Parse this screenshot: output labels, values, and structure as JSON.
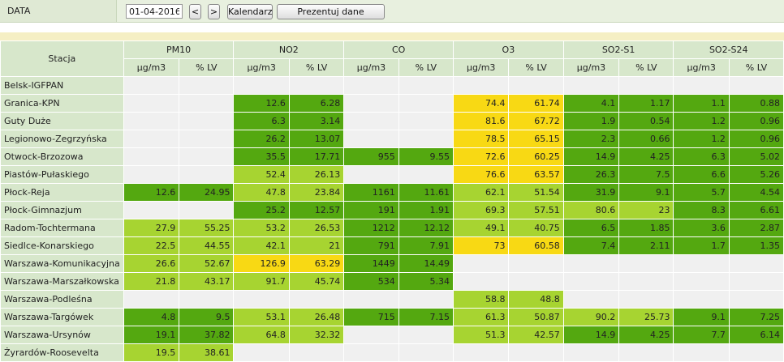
{
  "filter": {
    "label": "DATA",
    "date_value": "01-04-2016",
    "prev_label": "<",
    "next_label": ">",
    "calendar_label": "Kalendarz",
    "show_label": "Prezentuj dane"
  },
  "table": {
    "station_header": "Stacja",
    "groups": [
      "PM10",
      "NO2",
      "CO",
      "O3",
      "SO2-S1",
      "SO2-S24"
    ],
    "subheaders": [
      "µg/m3",
      "% LV"
    ],
    "legend_colors": {
      "empty": "#f0f0f0",
      "very_good": "#54a810",
      "good": "#a7d431",
      "moderate": "#f8d914"
    },
    "rows": [
      {
        "station": "Belsk-IGFPAN",
        "cells": [
          [
            "",
            ""
          ],
          [
            "",
            ""
          ],
          [
            "",
            ""
          ],
          [
            "",
            ""
          ],
          [
            "",
            ""
          ],
          [
            "",
            ""
          ]
        ],
        "levels": [
          0,
          0,
          0,
          0,
          0,
          0
        ]
      },
      {
        "station": "Granica-KPN",
        "cells": [
          [
            "",
            ""
          ],
          [
            "12.6",
            "6.28"
          ],
          [
            "",
            ""
          ],
          [
            "74.4",
            "61.74"
          ],
          [
            "4.1",
            "1.17"
          ],
          [
            "1.1",
            "0.88"
          ]
        ],
        "levels": [
          0,
          1,
          0,
          3,
          1,
          1
        ]
      },
      {
        "station": "Guty Duże",
        "cells": [
          [
            "",
            ""
          ],
          [
            "6.3",
            "3.14"
          ],
          [
            "",
            ""
          ],
          [
            "81.6",
            "67.72"
          ],
          [
            "1.9",
            "0.54"
          ],
          [
            "1.2",
            "0.96"
          ]
        ],
        "levels": [
          0,
          1,
          0,
          3,
          1,
          1
        ]
      },
      {
        "station": "Legionowo-Zegrzyńska",
        "cells": [
          [
            "",
            ""
          ],
          [
            "26.2",
            "13.07"
          ],
          [
            "",
            ""
          ],
          [
            "78.5",
            "65.15"
          ],
          [
            "2.3",
            "0.66"
          ],
          [
            "1.2",
            "0.96"
          ]
        ],
        "levels": [
          0,
          1,
          0,
          3,
          1,
          1
        ]
      },
      {
        "station": "Otwock-Brzozowa",
        "cells": [
          [
            "",
            ""
          ],
          [
            "35.5",
            "17.71"
          ],
          [
            "955",
            "9.55"
          ],
          [
            "72.6",
            "60.25"
          ],
          [
            "14.9",
            "4.25"
          ],
          [
            "6.3",
            "5.02"
          ]
        ],
        "levels": [
          0,
          1,
          1,
          3,
          1,
          1
        ]
      },
      {
        "station": "Piastów-Pułaskiego",
        "cells": [
          [
            "",
            ""
          ],
          [
            "52.4",
            "26.13"
          ],
          [
            "",
            ""
          ],
          [
            "76.6",
            "63.57"
          ],
          [
            "26.3",
            "7.5"
          ],
          [
            "6.6",
            "5.26"
          ]
        ],
        "levels": [
          0,
          2,
          0,
          3,
          1,
          1
        ]
      },
      {
        "station": "Płock-Reja",
        "cells": [
          [
            "12.6",
            "24.95"
          ],
          [
            "47.8",
            "23.84"
          ],
          [
            "1161",
            "11.61"
          ],
          [
            "62.1",
            "51.54"
          ],
          [
            "31.9",
            "9.1"
          ],
          [
            "5.7",
            "4.54"
          ]
        ],
        "levels": [
          1,
          2,
          1,
          2,
          1,
          1
        ]
      },
      {
        "station": "Płock-Gimnazjum",
        "cells": [
          [
            "",
            ""
          ],
          [
            "25.2",
            "12.57"
          ],
          [
            "191",
            "1.91"
          ],
          [
            "69.3",
            "57.51"
          ],
          [
            "80.6",
            "23"
          ],
          [
            "8.3",
            "6.61"
          ]
        ],
        "levels": [
          0,
          1,
          1,
          2,
          2,
          1
        ]
      },
      {
        "station": "Radom-Tochtermana",
        "cells": [
          [
            "27.9",
            "55.25"
          ],
          [
            "53.2",
            "26.53"
          ],
          [
            "1212",
            "12.12"
          ],
          [
            "49.1",
            "40.75"
          ],
          [
            "6.5",
            "1.85"
          ],
          [
            "3.6",
            "2.87"
          ]
        ],
        "levels": [
          2,
          2,
          1,
          2,
          1,
          1
        ]
      },
      {
        "station": "Siedlce-Konarskiego",
        "cells": [
          [
            "22.5",
            "44.55"
          ],
          [
            "42.1",
            "21"
          ],
          [
            "791",
            "7.91"
          ],
          [
            "73",
            "60.58"
          ],
          [
            "7.4",
            "2.11"
          ],
          [
            "1.7",
            "1.35"
          ]
        ],
        "levels": [
          2,
          2,
          1,
          3,
          1,
          1
        ]
      },
      {
        "station": "Warszawa-Komunikacyjna",
        "cells": [
          [
            "26.6",
            "52.67"
          ],
          [
            "126.9",
            "63.29"
          ],
          [
            "1449",
            "14.49"
          ],
          [
            "",
            ""
          ],
          [
            "",
            ""
          ],
          [
            "",
            ""
          ]
        ],
        "levels": [
          2,
          3,
          1,
          0,
          0,
          0
        ]
      },
      {
        "station": "Warszawa-Marszałkowska",
        "cells": [
          [
            "21.8",
            "43.17"
          ],
          [
            "91.7",
            "45.74"
          ],
          [
            "534",
            "5.34"
          ],
          [
            "",
            ""
          ],
          [
            "",
            ""
          ],
          [
            "",
            ""
          ]
        ],
        "levels": [
          2,
          2,
          1,
          0,
          0,
          0
        ]
      },
      {
        "station": "Warszawa-Podleśna",
        "cells": [
          [
            "",
            ""
          ],
          [
            "",
            ""
          ],
          [
            "",
            ""
          ],
          [
            "58.8",
            "48.8"
          ],
          [
            "",
            ""
          ],
          [
            "",
            ""
          ]
        ],
        "levels": [
          0,
          0,
          0,
          2,
          0,
          0
        ]
      },
      {
        "station": "Warszawa-Targówek",
        "cells": [
          [
            "4.8",
            "9.5"
          ],
          [
            "53.1",
            "26.48"
          ],
          [
            "715",
            "7.15"
          ],
          [
            "61.3",
            "50.87"
          ],
          [
            "90.2",
            "25.73"
          ],
          [
            "9.1",
            "7.25"
          ]
        ],
        "levels": [
          1,
          2,
          1,
          2,
          2,
          1
        ]
      },
      {
        "station": "Warszawa-Ursynów",
        "cells": [
          [
            "19.1",
            "37.82"
          ],
          [
            "64.8",
            "32.32"
          ],
          [
            "",
            ""
          ],
          [
            "51.3",
            "42.57"
          ],
          [
            "14.9",
            "4.25"
          ],
          [
            "7.7",
            "6.14"
          ]
        ],
        "levels": [
          1,
          2,
          0,
          2,
          1,
          1
        ]
      },
      {
        "station": "Żyrardów-Roosevelta",
        "cells": [
          [
            "19.5",
            "38.61"
          ],
          [
            "",
            ""
          ],
          [
            "",
            ""
          ],
          [
            "",
            ""
          ],
          [
            "",
            ""
          ],
          [
            "",
            ""
          ]
        ],
        "levels": [
          2,
          0,
          0,
          0,
          0,
          0
        ]
      }
    ]
  }
}
